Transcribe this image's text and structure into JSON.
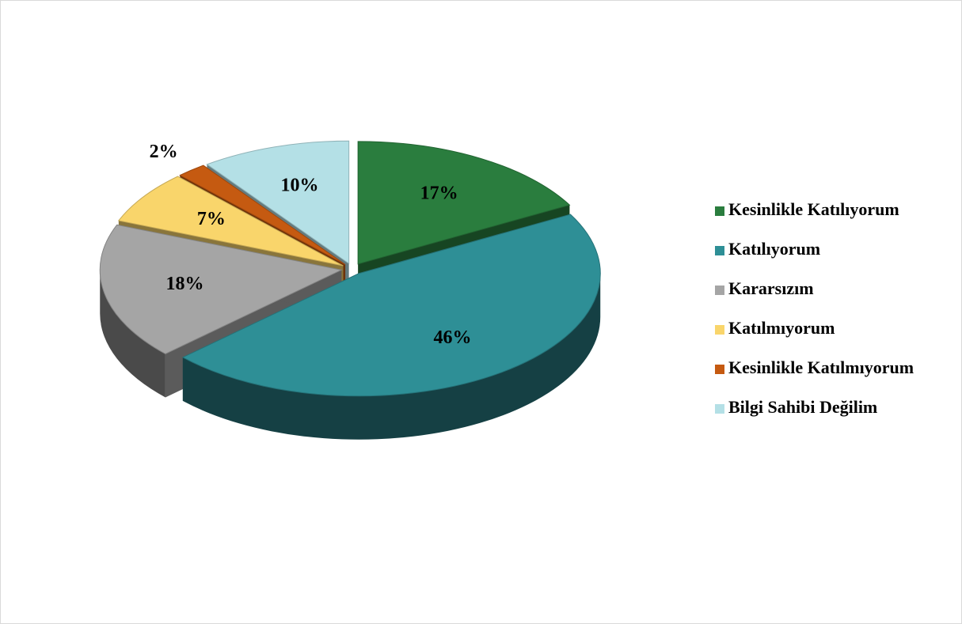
{
  "chart_data": {
    "type": "pie",
    "categories": [
      "Kesinlikle Katılıyorum",
      "Katılıyorum",
      "Kararsızım",
      "Katılmıyorum",
      "Kesinlikle Katılmıyorum",
      "Bilgi Sahibi Değilim"
    ],
    "values": [
      17,
      46,
      18,
      7,
      2,
      10
    ],
    "value_labels": [
      "17%",
      "46%",
      "18%",
      "7%",
      "2%",
      "10%"
    ],
    "colors": [
      "#2a7d3e",
      "#2e8f96",
      "#a5a5a5",
      "#f9d56b",
      "#c55a11",
      "#b4e0e6"
    ],
    "legend": "right"
  }
}
